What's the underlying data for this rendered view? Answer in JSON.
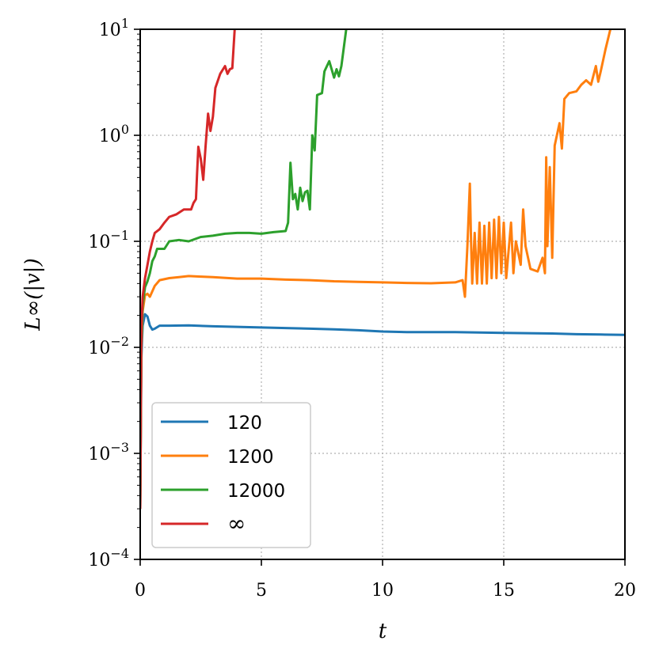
{
  "chart_data": {
    "type": "line",
    "title": "",
    "xlabel": "t",
    "ylabel": "L∞(|v|)",
    "xlim": [
      0,
      20
    ],
    "ylim_log10": [
      -4,
      1
    ],
    "y_scale": "log",
    "grid": true,
    "legend_position": "lower-left",
    "x_ticks": [
      {
        "value": 0,
        "label": "0"
      },
      {
        "value": 5,
        "label": "5"
      },
      {
        "value": 10,
        "label": "10"
      },
      {
        "value": 15,
        "label": "15"
      },
      {
        "value": 20,
        "label": "20"
      }
    ],
    "y_ticks": [
      {
        "exp": 1,
        "base": "10",
        "sup": "1"
      },
      {
        "exp": 0,
        "base": "10",
        "sup": "0"
      },
      {
        "exp": -1,
        "base": "10",
        "sup": "−1"
      },
      {
        "exp": -2,
        "base": "10",
        "sup": "−2"
      },
      {
        "exp": -3,
        "base": "10",
        "sup": "−3"
      },
      {
        "exp": -4,
        "base": "10",
        "sup": "−4"
      }
    ],
    "series": [
      {
        "name": "120",
        "color": "#1f77b4",
        "points": [
          [
            0,
            0.0003
          ],
          [
            0.05,
            0.008
          ],
          [
            0.1,
            0.016
          ],
          [
            0.2,
            0.0205
          ],
          [
            0.3,
            0.0195
          ],
          [
            0.4,
            0.016
          ],
          [
            0.5,
            0.0147
          ],
          [
            0.6,
            0.015
          ],
          [
            0.8,
            0.016
          ],
          [
            1.2,
            0.016
          ],
          [
            2,
            0.0161
          ],
          [
            3,
            0.0158
          ],
          [
            4,
            0.0156
          ],
          [
            5,
            0.0154
          ],
          [
            6,
            0.0152
          ],
          [
            7,
            0.015
          ],
          [
            8,
            0.0148
          ],
          [
            9,
            0.0145
          ],
          [
            10,
            0.0141
          ],
          [
            11,
            0.0139
          ],
          [
            12,
            0.0139
          ],
          [
            13,
            0.0139
          ],
          [
            14,
            0.0138
          ],
          [
            15,
            0.0137
          ],
          [
            16,
            0.0136
          ],
          [
            17,
            0.0135
          ],
          [
            18,
            0.0133
          ],
          [
            19,
            0.0132
          ],
          [
            20,
            0.0131
          ]
        ]
      },
      {
        "name": "1200",
        "color": "#ff7f0e",
        "points": [
          [
            0,
            0.0003
          ],
          [
            0.05,
            0.01
          ],
          [
            0.1,
            0.022
          ],
          [
            0.2,
            0.031
          ],
          [
            0.3,
            0.032
          ],
          [
            0.4,
            0.03
          ],
          [
            0.6,
            0.038
          ],
          [
            0.8,
            0.043
          ],
          [
            1.2,
            0.045
          ],
          [
            1.6,
            0.046
          ],
          [
            2,
            0.047
          ],
          [
            2.5,
            0.0465
          ],
          [
            3,
            0.046
          ],
          [
            4,
            0.0445
          ],
          [
            5,
            0.0445
          ],
          [
            6,
            0.0435
          ],
          [
            7,
            0.043
          ],
          [
            8,
            0.042
          ],
          [
            9,
            0.0415
          ],
          [
            10,
            0.041
          ],
          [
            11,
            0.0405
          ],
          [
            12,
            0.0402
          ],
          [
            13,
            0.041
          ],
          [
            13.3,
            0.043
          ],
          [
            13.4,
            0.03
          ],
          [
            13.5,
            0.09
          ],
          [
            13.6,
            0.35
          ],
          [
            13.65,
            0.1
          ],
          [
            13.7,
            0.04
          ],
          [
            13.8,
            0.12
          ],
          [
            13.9,
            0.04
          ],
          [
            14,
            0.15
          ],
          [
            14.1,
            0.04
          ],
          [
            14.2,
            0.14
          ],
          [
            14.3,
            0.04
          ],
          [
            14.4,
            0.15
          ],
          [
            14.5,
            0.045
          ],
          [
            14.6,
            0.16
          ],
          [
            14.7,
            0.045
          ],
          [
            14.8,
            0.17
          ],
          [
            14.9,
            0.05
          ],
          [
            15,
            0.15
          ],
          [
            15.1,
            0.045
          ],
          [
            15.3,
            0.15
          ],
          [
            15.4,
            0.05
          ],
          [
            15.5,
            0.1
          ],
          [
            15.7,
            0.06
          ],
          [
            15.8,
            0.2
          ],
          [
            15.9,
            0.09
          ],
          [
            16.1,
            0.055
          ],
          [
            16.4,
            0.052
          ],
          [
            16.6,
            0.07
          ],
          [
            16.7,
            0.05
          ],
          [
            16.75,
            0.62
          ],
          [
            16.8,
            0.09
          ],
          [
            16.9,
            0.5
          ],
          [
            17,
            0.07
          ],
          [
            17.1,
            0.8
          ],
          [
            17.3,
            1.3
          ],
          [
            17.4,
            0.75
          ],
          [
            17.5,
            2.2
          ],
          [
            17.7,
            2.5
          ],
          [
            18,
            2.6
          ],
          [
            18.2,
            3.0
          ],
          [
            18.4,
            3.3
          ],
          [
            18.6,
            3.0
          ],
          [
            18.8,
            4.5
          ],
          [
            18.9,
            3.2
          ],
          [
            19,
            4.0
          ],
          [
            19.2,
            6.5
          ],
          [
            19.4,
            10
          ]
        ]
      },
      {
        "name": "12000",
        "color": "#2ca02c",
        "points": [
          [
            0,
            0.0003
          ],
          [
            0.05,
            0.012
          ],
          [
            0.1,
            0.025
          ],
          [
            0.2,
            0.037
          ],
          [
            0.3,
            0.042
          ],
          [
            0.4,
            0.05
          ],
          [
            0.5,
            0.065
          ],
          [
            0.6,
            0.072
          ],
          [
            0.7,
            0.085
          ],
          [
            1,
            0.085
          ],
          [
            1.2,
            0.1
          ],
          [
            1.6,
            0.103
          ],
          [
            2,
            0.1
          ],
          [
            2.5,
            0.11
          ],
          [
            3,
            0.113
          ],
          [
            3.5,
            0.118
          ],
          [
            4,
            0.12
          ],
          [
            4.5,
            0.12
          ],
          [
            5,
            0.118
          ],
          [
            5.5,
            0.122
          ],
          [
            6,
            0.125
          ],
          [
            6.1,
            0.15
          ],
          [
            6.2,
            0.55
          ],
          [
            6.3,
            0.25
          ],
          [
            6.4,
            0.28
          ],
          [
            6.5,
            0.2
          ],
          [
            6.6,
            0.32
          ],
          [
            6.7,
            0.24
          ],
          [
            6.8,
            0.29
          ],
          [
            6.9,
            0.3
          ],
          [
            7,
            0.2
          ],
          [
            7.1,
            1.0
          ],
          [
            7.2,
            0.72
          ],
          [
            7.3,
            2.4
          ],
          [
            7.5,
            2.5
          ],
          [
            7.6,
            4.0
          ],
          [
            7.8,
            5.0
          ],
          [
            8,
            3.5
          ],
          [
            8.1,
            4.2
          ],
          [
            8.2,
            3.6
          ],
          [
            8.3,
            4.5
          ],
          [
            8.5,
            10
          ]
        ]
      },
      {
        "name": "∞",
        "color": "#d62728",
        "points": [
          [
            0,
            0.0003
          ],
          [
            0.05,
            0.015
          ],
          [
            0.1,
            0.03
          ],
          [
            0.2,
            0.045
          ],
          [
            0.3,
            0.06
          ],
          [
            0.4,
            0.08
          ],
          [
            0.5,
            0.1
          ],
          [
            0.6,
            0.12
          ],
          [
            0.8,
            0.13
          ],
          [
            1,
            0.15
          ],
          [
            1.2,
            0.17
          ],
          [
            1.5,
            0.18
          ],
          [
            1.8,
            0.2
          ],
          [
            2.1,
            0.2
          ],
          [
            2.2,
            0.23
          ],
          [
            2.3,
            0.25
          ],
          [
            2.35,
            0.45
          ],
          [
            2.4,
            0.78
          ],
          [
            2.5,
            0.6
          ],
          [
            2.6,
            0.38
          ],
          [
            2.7,
            0.8
          ],
          [
            2.8,
            1.6
          ],
          [
            2.9,
            1.1
          ],
          [
            3.0,
            1.5
          ],
          [
            3.1,
            2.8
          ],
          [
            3.3,
            3.8
          ],
          [
            3.5,
            4.5
          ],
          [
            3.6,
            3.8
          ],
          [
            3.7,
            4.2
          ],
          [
            3.8,
            4.3
          ],
          [
            3.9,
            10
          ]
        ]
      }
    ]
  }
}
